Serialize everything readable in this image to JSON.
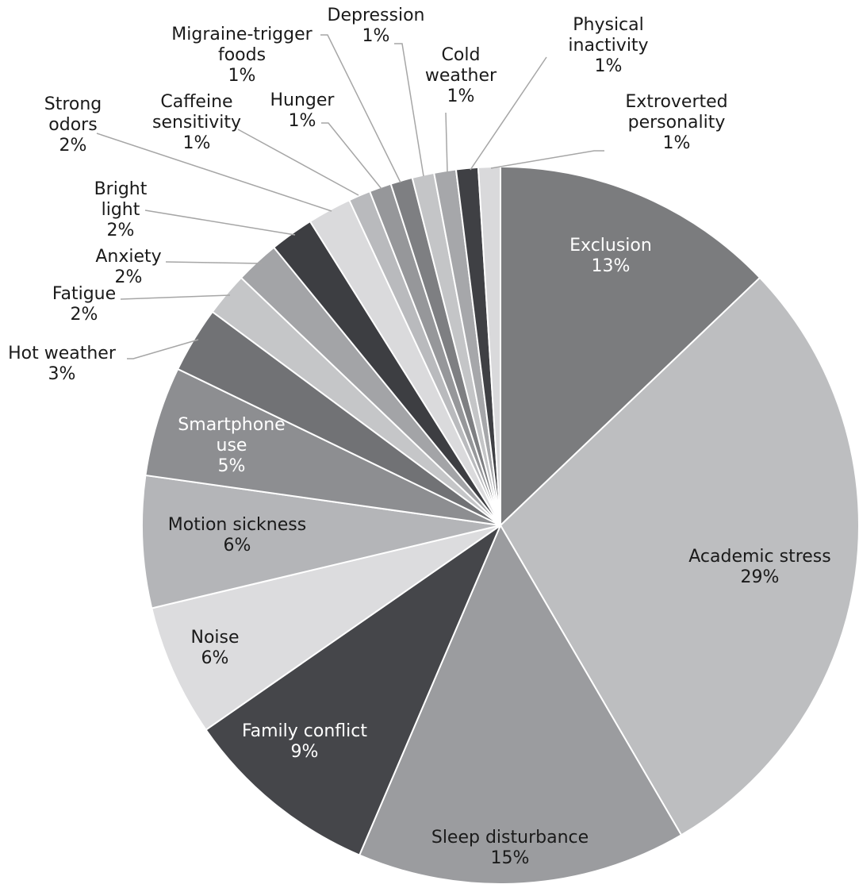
{
  "chart_data": {
    "type": "pie",
    "title": "",
    "legend": "none",
    "slices": [
      {
        "label": "Exclusion",
        "value": 13,
        "value_label": "13%",
        "color": "#7b7c7e",
        "label_color": "#ffffff"
      },
      {
        "label": "Academic stress",
        "value": 29,
        "value_label": "29%",
        "color": "#bdbec0",
        "label_color": "#1a1a1a"
      },
      {
        "label": "Sleep disturbance",
        "value": 15,
        "value_label": "15%",
        "color": "#9b9c9f",
        "label_color": "#1a1a1a"
      },
      {
        "label": "Family conflict",
        "value": 9,
        "value_label": "9%",
        "color": "#45464a",
        "label_color": "#ffffff"
      },
      {
        "label": "Noise",
        "value": 6,
        "value_label": "6%",
        "color": "#dcdcde",
        "label_color": "#1a1a1a"
      },
      {
        "label": "Motion sickness",
        "value": 6,
        "value_label": "6%",
        "color": "#b4b5b8",
        "label_color": "#1a1a1a"
      },
      {
        "label": "Smartphone use",
        "value": 5,
        "value_label": "5%",
        "color": "#8d8e91",
        "label_color": "#ffffff"
      },
      {
        "label": "Hot weather",
        "value": 3,
        "value_label": "3%",
        "color": "#717275",
        "label_color": "#1a1a1a"
      },
      {
        "label": "Fatigue",
        "value": 2,
        "value_label": "2%",
        "color": "#c5c6c8",
        "label_color": "#1a1a1a"
      },
      {
        "label": "Anxiety",
        "value": 2,
        "value_label": "2%",
        "color": "#a3a4a7",
        "label_color": "#1a1a1a"
      },
      {
        "label": "Bright light",
        "value": 2,
        "value_label": "2%",
        "color": "#3d3e42",
        "label_color": "#1a1a1a"
      },
      {
        "label": "Strong odors",
        "value": 2,
        "value_label": "2%",
        "color": "#dadadc",
        "label_color": "#1a1a1a"
      },
      {
        "label": "Caffeine sensitivity",
        "value": 1,
        "value_label": "1%",
        "color": "#b9babd",
        "label_color": "#1a1a1a"
      },
      {
        "label": "Hunger",
        "value": 1,
        "value_label": "1%",
        "color": "#96979a",
        "label_color": "#1a1a1a"
      },
      {
        "label": "Migraine-trigger foods",
        "value": 1,
        "value_label": "1%",
        "color": "#7e7f82",
        "label_color": "#1a1a1a"
      },
      {
        "label": "Depression",
        "value": 1,
        "value_label": "1%",
        "color": "#c4c5c7",
        "label_color": "#1a1a1a"
      },
      {
        "label": "Cold weather",
        "value": 1,
        "value_label": "1%",
        "color": "#a6a7aa",
        "label_color": "#1a1a1a"
      },
      {
        "label": "Physical inactivity",
        "value": 1,
        "value_label": "1%",
        "color": "#3f4044",
        "label_color": "#1a1a1a"
      },
      {
        "label": "Extroverted personality",
        "value": 1,
        "value_label": "1%",
        "color": "#d9d9db",
        "label_color": "#1a1a1a"
      }
    ]
  }
}
